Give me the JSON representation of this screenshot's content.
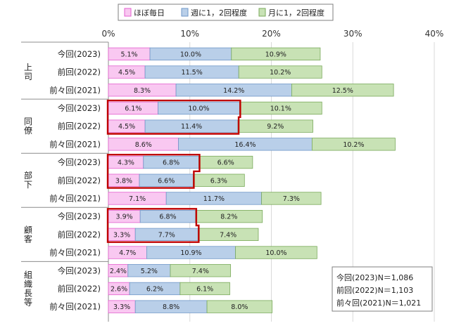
{
  "chart_data": {
    "type": "bar",
    "orientation": "horizontal",
    "stacked": true,
    "xlim": [
      0,
      40
    ],
    "xticks": [
      "0%",
      "10%",
      "20%",
      "30%",
      "40%"
    ],
    "legend_position": "top",
    "series": [
      {
        "name": "ほぼ毎日",
        "color": "#f9c8f1",
        "border": "#e35fcf"
      },
      {
        "name": "週に1，2回程度",
        "color": "#b9cfe9",
        "border": "#6f97c8"
      },
      {
        "name": "月に1，2回程度",
        "color": "#c8e2b5",
        "border": "#7aaa5b"
      }
    ],
    "groups": [
      {
        "label": "上司",
        "rows": [
          {
            "label": "今回(2023)",
            "values": [
              5.1,
              10.0,
              10.9
            ],
            "labels": [
              "5.1%",
              "10.0%",
              "10.9%"
            ]
          },
          {
            "label": "前回(2022)",
            "values": [
              4.5,
              11.5,
              10.2
            ],
            "labels": [
              "4.5%",
              "11.5%",
              "10.2%"
            ]
          },
          {
            "label": "前々回(2021)",
            "values": [
              8.3,
              14.2,
              12.5
            ],
            "labels": [
              "8.3%",
              "14.2%",
              "12.5%"
            ]
          }
        ]
      },
      {
        "label": "同僚",
        "rows": [
          {
            "label": "今回(2023)",
            "values": [
              6.1,
              10.0,
              10.1
            ],
            "labels": [
              "6.1%",
              "10.0%",
              "10.1%"
            ]
          },
          {
            "label": "前回(2022)",
            "values": [
              4.5,
              11.4,
              9.2
            ],
            "labels": [
              "4.5%",
              "11.4%",
              "9.2%"
            ]
          },
          {
            "label": "前々回(2021)",
            "values": [
              8.6,
              16.4,
              10.2
            ],
            "labels": [
              "8.6%",
              "16.4%",
              "10.2%"
            ]
          }
        ]
      },
      {
        "label": "部下",
        "rows": [
          {
            "label": "今回(2023)",
            "values": [
              4.3,
              6.8,
              6.6
            ],
            "labels": [
              "4.3%",
              "6.8%",
              "6.6%"
            ]
          },
          {
            "label": "前回(2022)",
            "values": [
              3.8,
              6.6,
              6.3
            ],
            "labels": [
              "3.8%",
              "6.6%",
              "6.3%"
            ]
          },
          {
            "label": "前々回(2021)",
            "values": [
              7.1,
              11.7,
              7.3
            ],
            "labels": [
              "7.1%",
              "11.7%",
              "7.3%"
            ]
          }
        ]
      },
      {
        "label": "顧客",
        "rows": [
          {
            "label": "今回(2023)",
            "values": [
              3.9,
              6.8,
              8.2
            ],
            "labels": [
              "3.9%",
              "6.8%",
              "8.2%"
            ]
          },
          {
            "label": "前回(2022)",
            "values": [
              3.3,
              7.7,
              7.4
            ],
            "labels": [
              "3.3%",
              "7.7%",
              "7.4%"
            ]
          },
          {
            "label": "前々回(2021)",
            "values": [
              4.7,
              10.9,
              10.0
            ],
            "labels": [
              "4.7%",
              "10.9%",
              "10.0%"
            ]
          }
        ]
      },
      {
        "label": "組織長等",
        "rows": [
          {
            "label": "今回(2023)",
            "values": [
              2.4,
              5.2,
              7.4
            ],
            "labels": [
              "2.4%",
              "5.2%",
              "7.4%"
            ]
          },
          {
            "label": "前回(2022)",
            "values": [
              2.6,
              6.2,
              6.1
            ],
            "labels": [
              "2.6%",
              "6.2%",
              "6.1%"
            ]
          },
          {
            "label": "前々回(2021)",
            "values": [
              3.3,
              8.8,
              8.0
            ],
            "labels": [
              "3.3%",
              "8.8%",
              "8.0%"
            ]
          }
        ]
      }
    ],
    "highlighted_groups": [
      1,
      2,
      3
    ],
    "highlight_color": "#c00000",
    "sample_sizes": [
      "今回(2023)N＝1,086",
      "前回(2022)N＝1,103",
      "前々回(2021)N＝1,021"
    ]
  }
}
